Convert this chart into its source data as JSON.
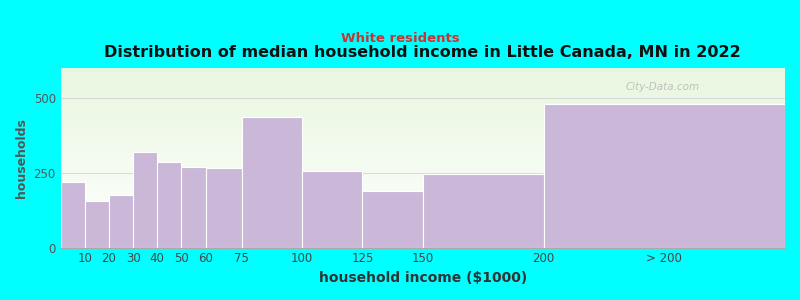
{
  "title": "Distribution of median household income in Little Canada, MN in 2022",
  "subtitle": "White residents",
  "xlabel": "household income ($1000)",
  "ylabel": "households",
  "background_color": "#00FFFF",
  "bar_color": "#cbb8d9",
  "bar_edge_color": "#ffffff",
  "subtitle_color": "#cc3333",
  "watermark": "City-Data.com",
  "bins_left": [
    0,
    10,
    20,
    30,
    40,
    50,
    60,
    75,
    100,
    125,
    150,
    200
  ],
  "bins_right": [
    10,
    20,
    30,
    40,
    50,
    60,
    75,
    100,
    125,
    150,
    200,
    300
  ],
  "values": [
    220,
    155,
    175,
    320,
    285,
    270,
    265,
    435,
    255,
    190,
    245,
    480
  ],
  "xtick_positions": [
    10,
    20,
    30,
    40,
    50,
    60,
    75,
    100,
    125,
    150,
    200,
    250
  ],
  "xtick_labels": [
    "10",
    "20",
    "30",
    "40",
    "50",
    "60",
    "75",
    "100",
    "125",
    "150",
    "200",
    "> 200"
  ],
  "ylim": [
    0,
    600
  ],
  "yticks": [
    0,
    250,
    500
  ],
  "plot_bg_colors": [
    "#f8fff8",
    "#e5f5e0"
  ],
  "xlim": [
    0,
    300
  ]
}
